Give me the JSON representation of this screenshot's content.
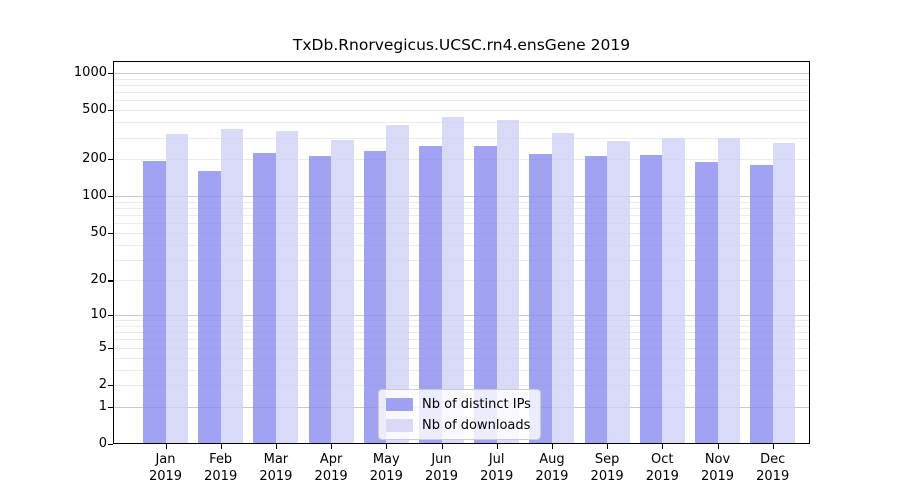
{
  "title": "TxDb.Rnorvegicus.UCSC.rn4.ensGene 2019",
  "chart_data": {
    "type": "bar",
    "title": "TxDb.Rnorvegicus.UCSC.rn4.ensGene 2019",
    "categories": [
      "Jan",
      "Feb",
      "Mar",
      "Apr",
      "May",
      "Jun",
      "Jul",
      "Aug",
      "Sep",
      "Oct",
      "Nov",
      "Dec"
    ],
    "category_year": "2019",
    "series": [
      {
        "name": "Nb of distinct IPs",
        "color": "rgba(139,139,239,0.8)",
        "values": [
          193,
          161,
          224,
          213,
          231,
          254,
          258,
          222,
          211,
          218,
          190,
          180
        ]
      },
      {
        "name": "Nb of downloads",
        "color": "rgba(207,207,246,0.8)",
        "values": [
          319,
          353,
          340,
          288,
          376,
          436,
          418,
          326,
          283,
          297,
          296,
          273
        ]
      }
    ],
    "y_axis": {
      "scale": "log10(1+v)",
      "ticks": [
        1000,
        500,
        200,
        100,
        50,
        20,
        10,
        5,
        2,
        1,
        0
      ],
      "max": 1250
    },
    "x_axis": {
      "tick_label_line2": "2019"
    },
    "legend": {
      "position": "lower-center"
    },
    "grid": {
      "major_lines": [
        1,
        10,
        100,
        1000
      ],
      "major_color": "#c9c9c9",
      "minor_color": "#ebebeb"
    }
  },
  "colors": {
    "background": "#ffffff",
    "spine": "#000000",
    "text": "#000000"
  }
}
